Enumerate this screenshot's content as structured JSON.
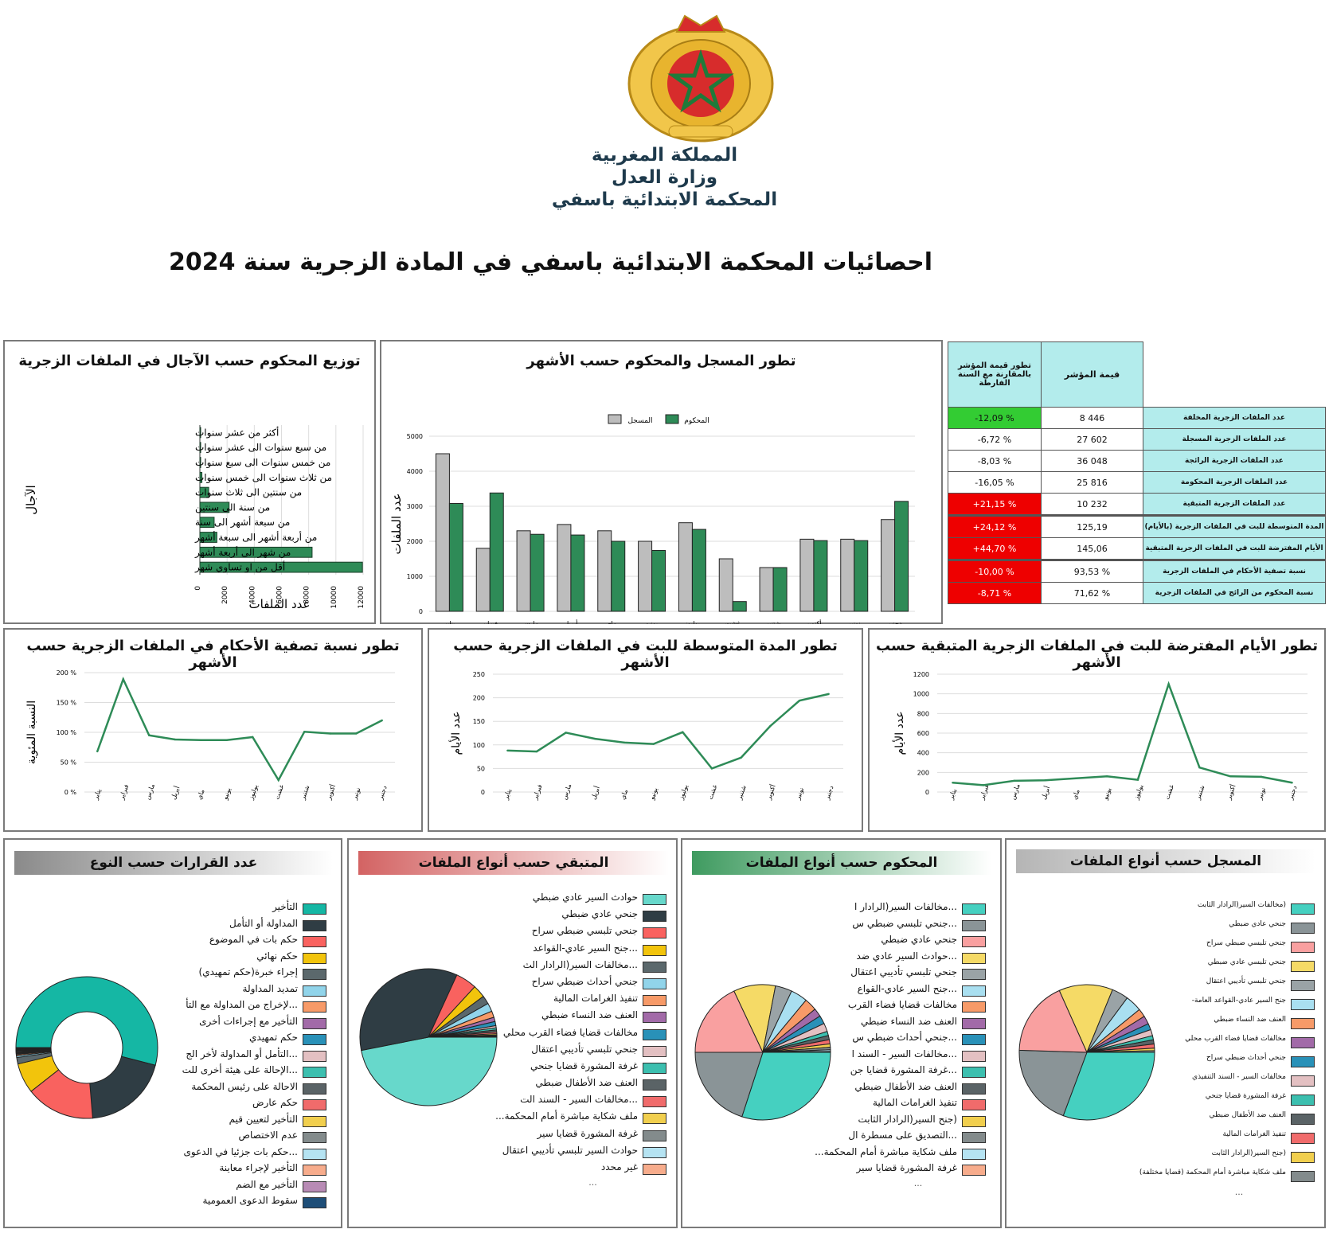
{
  "header": {
    "line1": "المملكة المغربية",
    "line2": "وزارة العدل",
    "line3": "المحكمة الابتدائية باسفي",
    "emblem_icon": "moroccan-coat-of-arms"
  },
  "title": "احصائيات المحكمة الابتدائية باسفي في المادة الزجرية سنة 2024",
  "colors": {
    "green": "#2e8b57",
    "grey": "#bdbdbd",
    "teal": "#b3ecec",
    "good": "#33cc33",
    "bad": "#ee0000"
  },
  "indicators": {
    "col_change": "تطور قيمة المؤشر بالمقارنة مع السنة الفارطة",
    "col_value": "قيمة المؤشر",
    "rows": [
      {
        "label": "عدد الملفات الزجرية المخلفة",
        "value": "8 446",
        "change": "-12,09 %",
        "status": "good"
      },
      {
        "label": "عدد الملفات الزجرية المسجلة",
        "value": "27 602",
        "change": "-6,72 %",
        "status": "neutral"
      },
      {
        "label": "عدد الملفات الزجرية الرائجة",
        "value": "36 048",
        "change": "-8,03 %",
        "status": "neutral"
      },
      {
        "label": "عدد الملفات الزجرية المحكومة",
        "value": "25 816",
        "change": "-16,05 %",
        "status": "neutral"
      },
      {
        "label": "عدد الملفات الزجرية المتبقية",
        "value": "10 232",
        "change": "+21,15 %",
        "status": "bad"
      },
      {
        "label": "المدة المتوسطة للبت في الملفات الزجرية (بالأيام)",
        "value": "125,19",
        "change": "+24,12 %",
        "status": "bad"
      },
      {
        "label": "الأيام المفترضة للبت في الملفات الزجرية المتبقية",
        "value": "145,06",
        "change": "+44,70 %",
        "status": "bad"
      },
      {
        "label": "نسبة تصفية الأحكام في الملفات الزجرية",
        "value": "93,53 %",
        "change": "-10,00 %",
        "status": "bad"
      },
      {
        "label": "نسبة المحكوم من الرائج في الملفات الزجرية",
        "value": "71,62 %",
        "change": "-8,71 %",
        "status": "bad"
      }
    ]
  },
  "chart_data": [
    {
      "id": "durations",
      "type": "bar",
      "title": "توزيع المحكوم حسب الآجال في الملفات الزجرية",
      "xlabel": "عدد الملفات",
      "ylabel": "الآجال",
      "categories": [
        "أكثر من عشر سنوات",
        "من سبع سنوات الى عشر سنوات",
        "من خمس سنوات الى سبع سنوات",
        "من ثلاث سنوات الى خمس سنوات",
        "من سنتين الى ثلاث سنوات",
        "من سنة الى سنتين",
        "من سبعة أشهر الى سنة",
        "من أربعة أشهر الى سبعة أشهر",
        "من شهر الى أربعة أشهر",
        "أقل من او تساوي شهر"
      ],
      "values": [
        20,
        30,
        40,
        150,
        650,
        2150,
        1050,
        1250,
        8250,
        11950
      ],
      "xlim": [
        0,
        12000
      ],
      "xticks": [
        "0",
        "2000",
        "4000",
        "6000",
        "8000",
        "10000",
        "12000"
      ]
    },
    {
      "id": "monthly",
      "type": "bar",
      "title": "تطور المسجل والمحكوم حسب الأشهر",
      "ylabel": "عدد الملفات",
      "categories": [
        "يناير",
        "فبراير",
        "مارس",
        "أبريل",
        "ماي",
        "يونيو",
        "يوليوز",
        "غشت",
        "شتنبر",
        "أكتوبر",
        "نونبر",
        "دجنبر"
      ],
      "series": [
        {
          "name": "المسجل",
          "values": [
            4500,
            1800,
            2300,
            2480,
            2300,
            2000,
            2530,
            1500,
            1250,
            2060,
            2060,
            2620
          ]
        },
        {
          "name": "المحكوم",
          "values": [
            3080,
            3380,
            2200,
            2180,
            2000,
            1740,
            2340,
            280,
            1250,
            2020,
            2020,
            3140
          ]
        }
      ],
      "ylim": [
        0,
        5000
      ],
      "yticks": [
        "0",
        "1000",
        "2000",
        "3000",
        "4000",
        "5000"
      ]
    },
    {
      "id": "clearance",
      "type": "line",
      "title": "تطور نسبة تصفية الأحكام في الملفات الزجرية حسب الأشهر",
      "ylabel": "النسبة المئوية",
      "categories": [
        "يناير",
        "فبراير",
        "مارس",
        "أبريل",
        "ماي",
        "يونيو",
        "يوليوز",
        "غشت",
        "شتنبر",
        "أكتوبر",
        "نونبر",
        "دجنبر"
      ],
      "values": [
        68,
        189,
        95,
        88,
        87,
        87,
        92,
        20,
        101,
        98,
        98,
        120
      ],
      "ylim": [
        0,
        200
      ],
      "yticks": [
        "0 %",
        "50 %",
        "100 %",
        "150 %",
        "200 %"
      ]
    },
    {
      "id": "avgdur",
      "type": "line",
      "title": "تطور المدة المتوسطة للبت في الملفات الزجرية حسب الأشهر",
      "ylabel": "عدد الأيام",
      "categories": [
        "يناير",
        "فبراير",
        "مارس",
        "أبريل",
        "ماي",
        "يونيو",
        "يوليوز",
        "غشت",
        "شتنبر",
        "أكتوبر",
        "نونبر",
        "دجنبر"
      ],
      "values": [
        88,
        86,
        126,
        113,
        105,
        102,
        127,
        50,
        73,
        140,
        194,
        208
      ],
      "ylim": [
        0,
        250
      ],
      "yticks": [
        "0",
        "50",
        "100",
        "150",
        "200",
        "250"
      ]
    },
    {
      "id": "expected",
      "type": "line",
      "title": "تطور الأيام المفترضة للبت في الملفات الزجرية المتبقية حسب الأشهر",
      "ylabel": "عدد الأيام",
      "categories": [
        "يناير",
        "فبراير",
        "مارس",
        "أبريل",
        "ماي",
        "يونيو",
        "يوليوز",
        "غشت",
        "شتنبر",
        "أكتوبر",
        "نونبر",
        "دجنبر"
      ],
      "values": [
        95,
        70,
        115,
        120,
        140,
        160,
        125,
        1100,
        250,
        160,
        155,
        95
      ],
      "ylim": [
        0,
        1200
      ],
      "yticks": [
        "0",
        "200",
        "400",
        "600",
        "800",
        "1000",
        "1200"
      ]
    },
    {
      "id": "decisions",
      "type": "pie",
      "title": "عدد القرارات حسب النوع",
      "categories": [
        "التأخير",
        "المداولة أو التأمل",
        "حكم بات في الموضوع",
        "حكم نهائي",
        "إجراء خبرة(حكم تمهيدي)",
        "تمديد المداولة",
        "...لإخراج من المداولة مع التأ",
        "التأخير مع إجراءات أخرى",
        "حكم تمهيدي",
        "...التأمل أو المداولة لأخر الج",
        "...الإحالة على هيئة أخرى للت",
        "الاحالة على رئيس المحكمة",
        "حكم عارض",
        "التأخير لتعيين قيم",
        "عدم الاختصاص",
        "...حكم بات جزئيا في الدعوى",
        "التأخير لإجراء معاينة",
        "التأخير مع الضم",
        "سقوط الدعوى العمومية"
      ],
      "values": [
        55,
        20,
        16,
        7,
        1.5,
        0.4,
        0.3,
        0.2,
        0.2,
        0.2,
        0.2,
        0.1,
        0.1,
        0.1,
        0.1,
        0.1,
        0.1,
        0.1,
        0.1
      ],
      "colors": [
        "#15b7a4",
        "#2f3d44",
        "#f9625f",
        "#f2c40c",
        "#5b686c",
        "#91d4ea",
        "#f79a68",
        "#a26aa8",
        "#2991b8",
        "#e3c0c2",
        "#3cbfaf",
        "#5a6366",
        "#f06b6b",
        "#f1cf4e",
        "#838b8c",
        "#b5e3f2",
        "#f7ac8c",
        "#b88bb5",
        "#1e4e78"
      ]
    },
    {
      "id": "remaining",
      "type": "pie",
      "title": "المتبقي حسب أنواع الملفات",
      "categories": [
        "حوادث السير عادي ضبطي",
        "جنحي عادي ضبطي",
        "جنحي تلبسي ضبطي سراح",
        "...جنح السير عادي-القواعد",
        "...مخالفات السير(الرادار الث",
        "جنحي أحداث ضبطي سراح",
        "تنفيذ الغرامات المالية",
        "العنف ضد النساء ضبطي",
        "مخالفات قضايا فضاء القرب محلي",
        "جنحي تلبسي تأديبي اعتقال",
        "غرفة المشورة قضايا جنحي",
        "العنف ضد الأطفال ضبطي",
        "...مخالفات السير - السند الت",
        "ملف شكاية مباشرة أمام المحكمة...",
        "غرفة المشورة قضايا سير",
        "حوادث السير تلبسي تأديبي اعتقال",
        "غير محدد"
      ],
      "values": [
        47,
        35,
        5,
        3,
        2,
        2,
        1.5,
        1,
        1,
        0.5,
        0.5,
        0.5,
        0.4,
        0.3,
        0.2,
        0.2,
        0.1
      ],
      "colors": [
        "#67d8cb",
        "#2f3d44",
        "#f9625f",
        "#f2c40c",
        "#5b686c",
        "#91d4ea",
        "#f79a68",
        "#a26aa8",
        "#2991b8",
        "#e3c0c2",
        "#3cbfaf",
        "#5a6366",
        "#f06b6b",
        "#f1cf4e",
        "#838b8c",
        "#b5e3f2",
        "#f7ac8c"
      ],
      "more_indicator": "..."
    },
    {
      "id": "judged",
      "type": "pie",
      "title": "المحكوم حسب أنواع الملفات",
      "categories": [
        "...مخالفات السير(الرادار ا",
        "...جنحي تلبسي ضبطي س",
        "جنحي عادي ضبطي",
        "...حوادث السير عادي ضد",
        "جنحي تلبسي تأديبي اعتقال",
        "...جنح السير عادي-القواع",
        "مخالفات قضايا فضاء القرب",
        "العنف ضد النساء ضبطي",
        "...جنحي أحداث ضبطي س",
        "...مخالفات السير - السند ا",
        "...غرفة المشورة قضايا جن",
        "العنف ضد الأطفال ضبطي",
        "تنفيذ الغرامات المالية",
        "(جنح السير(الرادار الثابت",
        "...التصديق على مسطرة ال",
        "ملف شكاية مباشرة أمام المحكمة...",
        "غرفة المشورة قضايا سير"
      ],
      "values": [
        30,
        20,
        18,
        10,
        4,
        4,
        3,
        2,
        2,
        2,
        1,
        1,
        1,
        0.8,
        0.6,
        0.4,
        0.2
      ],
      "colors": [
        "#45d0c0",
        "#8a9497",
        "#f9a0a0",
        "#f5da66",
        "#9aa3a6",
        "#a9dff0",
        "#f79a68",
        "#a26aa8",
        "#2991b8",
        "#e3c0c2",
        "#3cbfaf",
        "#5a6366",
        "#f06b6b",
        "#f1cf4e",
        "#838b8c",
        "#b5e3f2",
        "#f7ac8c"
      ],
      "more_indicator": "..."
    },
    {
      "id": "registered",
      "type": "pie",
      "title": "المسجل حسب أنواع الملفات",
      "categories": [
        "(مخالفات السير(الرادار الثابت",
        "جنحي عادي ضبطي",
        "جنحي تلبسي ضبطي سراح",
        "جنحي تلبسي عادي ضبطي",
        "جنحي تلبسي تأديبي اعتقال",
        "جنح السير عادي-القواعد العامة-",
        "العنف ضد النساء ضبطي",
        "مخالفات قضايا فضاء القرب محلي",
        "جنحي أحداث ضبطي سراح",
        "مخالفات السير - السند التنفيذي",
        "غرفة المشورة قضايا جنحي",
        "العنف ضد الأطفال ضبطي",
        "تنفيذ الغرامات المالية",
        "(جنح السير(الرادار الثابت",
        "ملف شكاية مباشرة أمام المحكمة (قضايا مختلفة)"
      ],
      "values": [
        31,
        20,
        18,
        13,
        4,
        4,
        2,
        2,
        1.5,
        1.5,
        1,
        1,
        1,
        0.6,
        0.4
      ],
      "colors": [
        "#45d0c0",
        "#8a9497",
        "#f9a0a0",
        "#f5da66",
        "#9aa3a6",
        "#a9dff0",
        "#f79a68",
        "#a26aa8",
        "#2991b8",
        "#e3c0c2",
        "#3cbfaf",
        "#5a6366",
        "#f06b6b",
        "#f1cf4e",
        "#838b8c"
      ],
      "more_indicator": "..."
    }
  ]
}
